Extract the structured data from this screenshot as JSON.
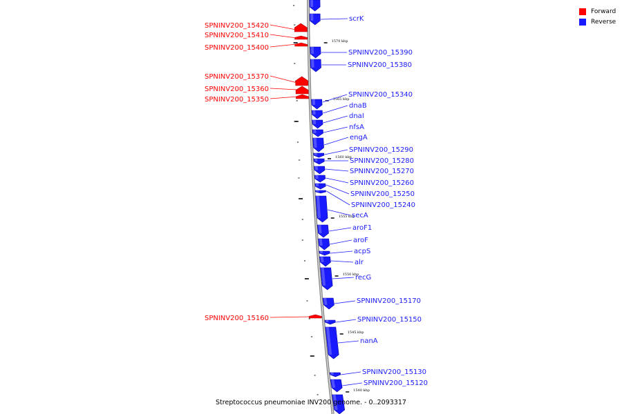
{
  "legend": {
    "forward_label": "Forward",
    "reverse_label": "Reverse",
    "forward_color": "#ff0000",
    "reverse_color": "#1a1aff"
  },
  "caption": "Streptococcus pneumoniae INV200 genome. - 0..2093317",
  "scale_labels": [
    "1570 kbp",
    "1565 kbp",
    "1560 kbp",
    "1555 kbp",
    "1550 kbp",
    "1545 kbp",
    "1540 kbp"
  ],
  "forward_genes": [
    "SPNINV200_15420",
    "SPNINV200_15410",
    "SPNINV200_15400",
    "SPNINV200_15370",
    "SPNINV200_15360",
    "SPNINV200_15350",
    "SPNINV200_15160"
  ],
  "reverse_genes": [
    "scrK",
    "SPNINV200_15390",
    "SPNINV200_15380",
    "SPNINV200_15340",
    "dnaB",
    "dnaI",
    "nfsA",
    "engA",
    "SPNINV200_15290",
    "SPNINV200_15280",
    "SPNINV200_15270",
    "SPNINV200_15260",
    "SPNINV200_15250",
    "SPNINV200_15240",
    "secA",
    "aroF1",
    "aroF",
    "acpS",
    "alr",
    "recG",
    "SPNINV200_15170",
    "SPNINV200_15150",
    "nanA",
    "SPNINV200_15130",
    "SPNINV200_15120"
  ]
}
